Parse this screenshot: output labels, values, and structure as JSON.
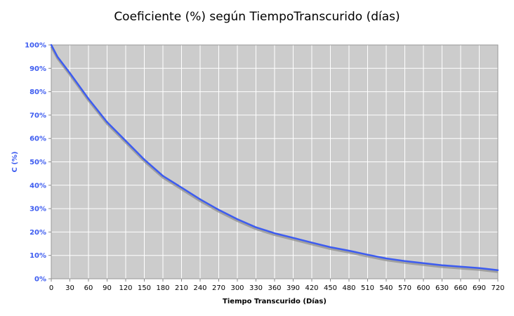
{
  "chart_data": {
    "type": "line",
    "title": "Coeficiente (%) según TiempoTranscurido (días)",
    "xlabel": "Tiempo Transcurido (Días)",
    "ylabel": "C (%)",
    "xlim": [
      0,
      720
    ],
    "ylim": [
      0,
      100
    ],
    "x_ticks": [
      "0",
      "30",
      "60",
      "90",
      "120",
      "150",
      "180",
      "210",
      "240",
      "270",
      "300",
      "330",
      "360",
      "390",
      "420",
      "450",
      "480",
      "510",
      "540",
      "570",
      "600",
      "630",
      "660",
      "690",
      "720"
    ],
    "y_ticks": [
      "0%",
      "10%",
      "20%",
      "30%",
      "40%",
      "50%",
      "60%",
      "70%",
      "80%",
      "90%",
      "100%"
    ],
    "grid": true,
    "legend": "none",
    "series": [
      {
        "x": [
          0,
          10,
          30,
          60,
          90,
          120,
          150,
          180,
          210,
          240,
          270,
          300,
          330,
          360,
          390,
          420,
          450,
          480,
          510,
          540,
          570,
          600,
          630,
          660,
          690,
          720
        ],
        "values": [
          100,
          95,
          88,
          77,
          67,
          59,
          51,
          44,
          39,
          34,
          29.5,
          25.5,
          22,
          19.5,
          17.5,
          15.5,
          13.5,
          12,
          10.3,
          8.7,
          7.6,
          6.7,
          5.8,
          5.2,
          4.6,
          3.7
        ]
      }
    ],
    "colors": {
      "line": "#3d5cf0",
      "shadow": "#8c8c8c",
      "plot_background": "#cccccc",
      "grid": "#ffffff",
      "y_tick_text": "#3d5cf0",
      "y_label_text": "#3d5cf0",
      "x_label_text": "#000000"
    }
  }
}
